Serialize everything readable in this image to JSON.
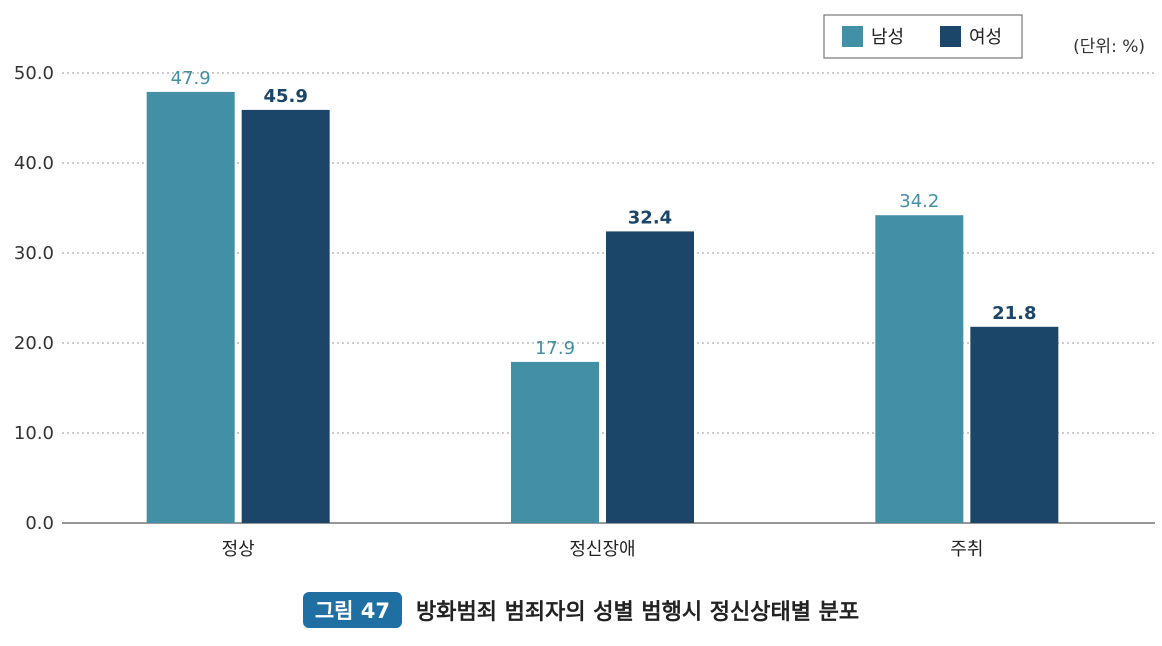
{
  "chart_data": {
    "type": "bar",
    "categories": [
      "정상",
      "정신장애",
      "주취"
    ],
    "series": [
      {
        "name": "남성",
        "values": [
          47.9,
          17.9,
          34.2
        ],
        "color": "#4390a6"
      },
      {
        "name": "여성",
        "values": [
          45.9,
          32.4,
          21.8
        ],
        "color": "#1b4569"
      }
    ],
    "unit": "(단위: %)",
    "ylim": [
      0,
      50
    ],
    "yticks": [
      "0.0",
      "10.0",
      "20.0",
      "30.0",
      "40.0",
      "50.0"
    ],
    "legend_position": "top-right",
    "grid": true
  },
  "caption": {
    "label": "그림 47",
    "title": "방화범죄 범죄자의 성별 범행시 정신상태별 분포"
  }
}
